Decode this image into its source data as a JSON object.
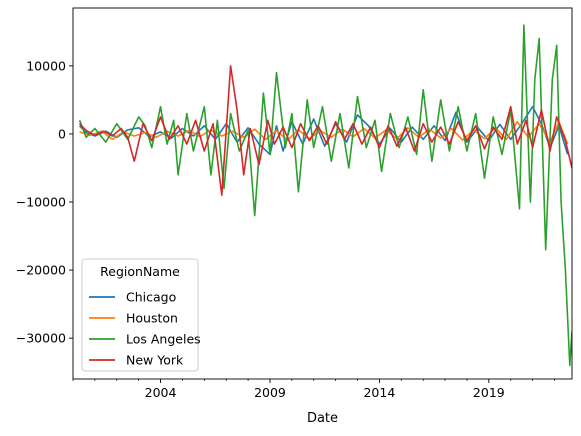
{
  "chart_data": {
    "type": "line",
    "xlabel": "Date",
    "ylabel": "",
    "xlim": [
      2000.0,
      2022.8
    ],
    "ylim": [
      -36000,
      18500
    ],
    "x_ticks": [
      2004,
      2009,
      2014,
      2019
    ],
    "y_ticks": [
      10000,
      0,
      -10000,
      -20000,
      -30000
    ],
    "y_tick_labels": [
      "10000",
      "0",
      "−10000",
      "−20000",
      "−30000"
    ],
    "grid": false,
    "legend": {
      "title": "RegionName",
      "placement": "lower-left"
    },
    "series": [
      {
        "name": "Chicago",
        "color": "#1f77b4",
        "points": [
          [
            2000.3,
            1200
          ],
          [
            2000.6,
            200
          ],
          [
            2001.0,
            -300
          ],
          [
            2001.5,
            400
          ],
          [
            2002.0,
            -500
          ],
          [
            2002.5,
            600
          ],
          [
            2003.0,
            900
          ],
          [
            2003.5,
            -400
          ],
          [
            2004.0,
            300
          ],
          [
            2004.5,
            -600
          ],
          [
            2005.0,
            800
          ],
          [
            2005.5,
            -300
          ],
          [
            2006.0,
            1200
          ],
          [
            2006.5,
            -800
          ],
          [
            2007.0,
            1500
          ],
          [
            2007.5,
            -1200
          ],
          [
            2008.0,
            900
          ],
          [
            2008.5,
            -1500
          ],
          [
            2009.0,
            -3000
          ],
          [
            2009.3,
            1200
          ],
          [
            2009.6,
            -2500
          ],
          [
            2010.0,
            1800
          ],
          [
            2010.5,
            -1500
          ],
          [
            2011.0,
            2200
          ],
          [
            2011.5,
            -1800
          ],
          [
            2012.0,
            1500
          ],
          [
            2012.5,
            -1200
          ],
          [
            2013.0,
            2800
          ],
          [
            2013.5,
            1200
          ],
          [
            2014.0,
            -1500
          ],
          [
            2014.5,
            800
          ],
          [
            2015.0,
            -1200
          ],
          [
            2015.5,
            1000
          ],
          [
            2016.0,
            -800
          ],
          [
            2016.5,
            1200
          ],
          [
            2017.0,
            -1000
          ],
          [
            2017.5,
            3200
          ],
          [
            2018.0,
            -1200
          ],
          [
            2018.5,
            900
          ],
          [
            2019.0,
            -1000
          ],
          [
            2019.5,
            1400
          ],
          [
            2020.0,
            -800
          ],
          [
            2020.5,
            1500
          ],
          [
            2021.0,
            4000
          ],
          [
            2021.4,
            1500
          ],
          [
            2021.8,
            -2000
          ],
          [
            2022.2,
            1200
          ],
          [
            2022.6,
            -3000
          ]
        ]
      },
      {
        "name": "Houston",
        "color": "#ff7f0e",
        "points": [
          [
            2000.3,
            300
          ],
          [
            2000.8,
            -200
          ],
          [
            2001.3,
            400
          ],
          [
            2001.8,
            -800
          ],
          [
            2002.3,
            300
          ],
          [
            2002.8,
            -300
          ],
          [
            2003.3,
            200
          ],
          [
            2003.8,
            -500
          ],
          [
            2004.3,
            400
          ],
          [
            2004.8,
            -300
          ],
          [
            2005.3,
            500
          ],
          [
            2005.8,
            -400
          ],
          [
            2006.3,
            600
          ],
          [
            2006.8,
            -300
          ],
          [
            2007.3,
            400
          ],
          [
            2007.8,
            -500
          ],
          [
            2008.3,
            700
          ],
          [
            2008.8,
            -800
          ],
          [
            2009.3,
            500
          ],
          [
            2009.8,
            -900
          ],
          [
            2010.3,
            600
          ],
          [
            2010.8,
            -700
          ],
          [
            2011.3,
            500
          ],
          [
            2011.8,
            -500
          ],
          [
            2012.3,
            700
          ],
          [
            2012.8,
            -400
          ],
          [
            2013.3,
            800
          ],
          [
            2013.8,
            -600
          ],
          [
            2014.3,
            600
          ],
          [
            2014.8,
            -700
          ],
          [
            2015.3,
            900
          ],
          [
            2015.8,
            -500
          ],
          [
            2016.3,
            700
          ],
          [
            2016.8,
            -600
          ],
          [
            2017.3,
            800
          ],
          [
            2017.8,
            -900
          ],
          [
            2018.3,
            600
          ],
          [
            2018.8,
            -700
          ],
          [
            2019.3,
            900
          ],
          [
            2019.8,
            -800
          ],
          [
            2020.3,
            1800
          ],
          [
            2020.8,
            -500
          ],
          [
            2021.3,
            1500
          ],
          [
            2021.8,
            -1200
          ],
          [
            2022.2,
            1800
          ],
          [
            2022.6,
            -1500
          ]
        ]
      },
      {
        "name": "Los Angeles",
        "color": "#2ca02c",
        "points": [
          [
            2000.3,
            2000
          ],
          [
            2000.6,
            -500
          ],
          [
            2001.0,
            800
          ],
          [
            2001.5,
            -1200
          ],
          [
            2002.0,
            1500
          ],
          [
            2002.5,
            -800
          ],
          [
            2003.0,
            2500
          ],
          [
            2003.3,
            1200
          ],
          [
            2003.6,
            -2000
          ],
          [
            2004.0,
            4000
          ],
          [
            2004.3,
            -1500
          ],
          [
            2004.6,
            2000
          ],
          [
            2004.8,
            -6000
          ],
          [
            2005.2,
            3000
          ],
          [
            2005.5,
            -2500
          ],
          [
            2006.0,
            4000
          ],
          [
            2006.3,
            -6000
          ],
          [
            2006.6,
            2000
          ],
          [
            2006.9,
            -8000
          ],
          [
            2007.2,
            3000
          ],
          [
            2007.6,
            -2500
          ],
          [
            2008.0,
            500
          ],
          [
            2008.3,
            -12000
          ],
          [
            2008.7,
            6000
          ],
          [
            2009.0,
            -3000
          ],
          [
            2009.3,
            9000
          ],
          [
            2009.7,
            -2000
          ],
          [
            2010.0,
            3000
          ],
          [
            2010.3,
            -8500
          ],
          [
            2010.7,
            5000
          ],
          [
            2011.0,
            -2000
          ],
          [
            2011.4,
            4000
          ],
          [
            2011.8,
            -4000
          ],
          [
            2012.2,
            3000
          ],
          [
            2012.6,
            -5000
          ],
          [
            2013.0,
            5500
          ],
          [
            2013.4,
            -2000
          ],
          [
            2013.8,
            2000
          ],
          [
            2014.1,
            -5500
          ],
          [
            2014.5,
            3000
          ],
          [
            2014.9,
            -2000
          ],
          [
            2015.3,
            2500
          ],
          [
            2015.7,
            -3000
          ],
          [
            2016.0,
            6500
          ],
          [
            2016.4,
            -4000
          ],
          [
            2016.8,
            5000
          ],
          [
            2017.2,
            -2500
          ],
          [
            2017.6,
            4000
          ],
          [
            2018.0,
            -2500
          ],
          [
            2018.4,
            3000
          ],
          [
            2018.8,
            -6500
          ],
          [
            2019.2,
            2500
          ],
          [
            2019.6,
            -3000
          ],
          [
            2020.0,
            3500
          ],
          [
            2020.4,
            -11000
          ],
          [
            2020.6,
            16000
          ],
          [
            2020.9,
            -10000
          ],
          [
            2021.1,
            8000
          ],
          [
            2021.3,
            14000
          ],
          [
            2021.6,
            -17000
          ],
          [
            2021.9,
            8000
          ],
          [
            2022.1,
            13000
          ],
          [
            2022.3,
            -10000
          ],
          [
            2022.5,
            -20000
          ],
          [
            2022.7,
            -34000
          ],
          [
            2022.8,
            -29000
          ]
        ]
      },
      {
        "name": "New York",
        "color": "#d62728",
        "points": [
          [
            2000.3,
            1500
          ],
          [
            2000.6,
            500
          ],
          [
            2001.0,
            -200
          ],
          [
            2001.4,
            400
          ],
          [
            2001.8,
            -300
          ],
          [
            2002.2,
            800
          ],
          [
            2002.5,
            -500
          ],
          [
            2002.8,
            -4000
          ],
          [
            2003.2,
            1500
          ],
          [
            2003.6,
            -1000
          ],
          [
            2004.0,
            2500
          ],
          [
            2004.4,
            -800
          ],
          [
            2004.8,
            1200
          ],
          [
            2005.2,
            -1500
          ],
          [
            2005.6,
            2000
          ],
          [
            2006.0,
            -2500
          ],
          [
            2006.4,
            1500
          ],
          [
            2006.8,
            -9000
          ],
          [
            2007.2,
            10000
          ],
          [
            2007.5,
            3500
          ],
          [
            2007.8,
            -6000
          ],
          [
            2008.1,
            800
          ],
          [
            2008.5,
            -4500
          ],
          [
            2008.9,
            2000
          ],
          [
            2009.2,
            -1500
          ],
          [
            2009.6,
            1000
          ],
          [
            2010.0,
            -2000
          ],
          [
            2010.4,
            1500
          ],
          [
            2010.8,
            -1000
          ],
          [
            2011.2,
            1200
          ],
          [
            2011.6,
            -1500
          ],
          [
            2012.0,
            1800
          ],
          [
            2012.4,
            -800
          ],
          [
            2012.8,
            1500
          ],
          [
            2013.2,
            -1500
          ],
          [
            2013.6,
            1000
          ],
          [
            2014.0,
            -2000
          ],
          [
            2014.4,
            1200
          ],
          [
            2014.8,
            -1800
          ],
          [
            2015.2,
            900
          ],
          [
            2015.6,
            -2500
          ],
          [
            2016.0,
            1500
          ],
          [
            2016.4,
            -1200
          ],
          [
            2016.8,
            1000
          ],
          [
            2017.2,
            -1500
          ],
          [
            2017.6,
            1800
          ],
          [
            2018.0,
            -1000
          ],
          [
            2018.4,
            1200
          ],
          [
            2018.8,
            -2200
          ],
          [
            2019.2,
            1000
          ],
          [
            2019.6,
            -800
          ],
          [
            2020.0,
            4000
          ],
          [
            2020.3,
            -1500
          ],
          [
            2020.7,
            2000
          ],
          [
            2021.0,
            -2000
          ],
          [
            2021.4,
            3500
          ],
          [
            2021.8,
            -2500
          ],
          [
            2022.1,
            2500
          ],
          [
            2022.5,
            -1000
          ],
          [
            2022.8,
            -5000
          ]
        ]
      }
    ]
  }
}
